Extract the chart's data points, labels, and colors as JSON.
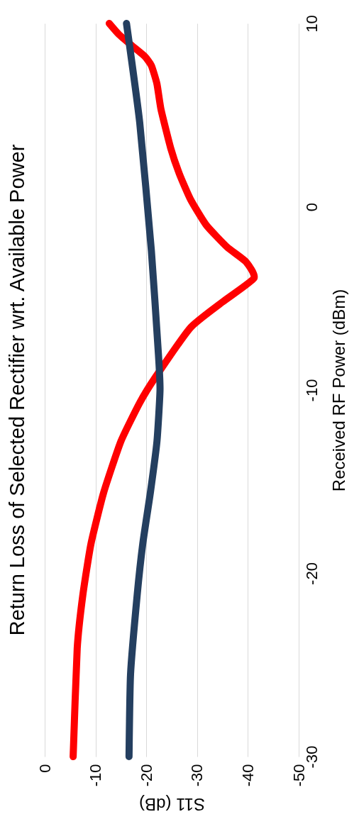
{
  "chart_data": {
    "type": "line",
    "title": "Return Loss of Selected Rectifier wrt. Available Power",
    "xlabel": "S11 (dB)",
    "ylabel": "Received RF Power (dBm)",
    "xlim": [
      0,
      -50
    ],
    "xticks": [
      0,
      -10,
      -20,
      -30,
      -40,
      -50
    ],
    "ylim": [
      -30,
      10
    ],
    "yticks": [
      -30,
      -20,
      -10,
      0,
      10
    ],
    "grid": "x",
    "legend": false,
    "series": [
      {
        "color": "#ff0000",
        "values": [
          -30,
          -24.1,
          -21.2,
          -18.4,
          -15.6,
          -12.8,
          -10.7,
          -9.3,
          -6.6,
          -5.2,
          -3.9,
          -3.0,
          -2.2,
          -1.0,
          0.4,
          1.8,
          3.2,
          5.3,
          6.7,
          7.7,
          8.2,
          8.8,
          9.4,
          10
        ],
        "x": [
          -5.6,
          -6.4,
          -7.5,
          -9.1,
          -11.6,
          -15.0,
          -18.7,
          -21.8,
          -28.7,
          -35.0,
          -41.2,
          -39.6,
          -35.9,
          -31.8,
          -28.7,
          -26.5,
          -24.8,
          -22.9,
          -22.1,
          -21.0,
          -19.7,
          -17.1,
          -14.6,
          -12.7
        ]
      },
      {
        "color": "#243f60",
        "values": [
          -30,
          -25.5,
          -21.2,
          -18.4,
          -15.6,
          -12.8,
          -10.0,
          -8.1,
          -2.4,
          4.6,
          10
        ],
        "x": [
          -16.6,
          -16.9,
          -18.2,
          -19.3,
          -20.8,
          -22.1,
          -22.7,
          -22.4,
          -21.0,
          -18.7,
          -16.1
        ]
      }
    ]
  }
}
